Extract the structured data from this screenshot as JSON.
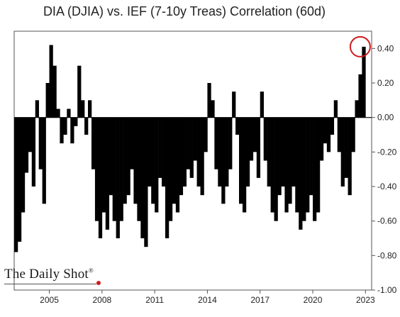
{
  "header": {
    "title": "DIA (DJIA) vs. IEF (7-10y Treas) Correlation (60d)"
  },
  "branding": {
    "watermark": "The Daily Shot",
    "registered_mark": "®"
  },
  "chart_data": {
    "type": "bar",
    "title": "DIA (DJIA) vs. IEF (7-10y Treas) Correlation (60d)",
    "xlabel": "",
    "ylabel": "",
    "ylim": [
      -1.0,
      0.5
    ],
    "y_ticks": [
      0.4,
      0.2,
      0.0,
      -0.2,
      -0.4,
      -0.6,
      -0.8,
      -1.0
    ],
    "y_tick_labels": [
      "0.40",
      "0.20",
      "0.00",
      "-0.20",
      "-0.40",
      "-0.60",
      "-0.80",
      "-1.00"
    ],
    "x_ticks": [
      2005,
      2008,
      2011,
      2014,
      2017,
      2020,
      2023
    ],
    "x_tick_labels": [
      "2005",
      "2008",
      "2011",
      "2014",
      "2017",
      "2020",
      "2023"
    ],
    "x_range": [
      2003.0,
      2023.35
    ],
    "y_axis_position": "right",
    "grid": false,
    "bar_color": "#000000",
    "highlight_color": "#d01c1f",
    "highlight_annotation": {
      "x": 2022.7,
      "y": 0.41
    },
    "x": [
      2003.0,
      2003.2,
      2003.4,
      2003.6,
      2003.8,
      2004.0,
      2004.2,
      2004.4,
      2004.6,
      2004.8,
      2005.0,
      2005.2,
      2005.4,
      2005.6,
      2005.8,
      2006.0,
      2006.2,
      2006.4,
      2006.6,
      2006.8,
      2007.0,
      2007.2,
      2007.4,
      2007.6,
      2007.8,
      2008.0,
      2008.2,
      2008.4,
      2008.6,
      2008.8,
      2009.0,
      2009.2,
      2009.4,
      2009.6,
      2009.8,
      2010.0,
      2010.2,
      2010.4,
      2010.6,
      2010.8,
      2011.0,
      2011.2,
      2011.4,
      2011.6,
      2011.8,
      2012.0,
      2012.2,
      2012.4,
      2012.6,
      2012.8,
      2013.0,
      2013.2,
      2013.4,
      2013.6,
      2013.8,
      2014.0,
      2014.2,
      2014.4,
      2014.6,
      2014.8,
      2015.0,
      2015.2,
      2015.4,
      2015.6,
      2015.8,
      2016.0,
      2016.2,
      2016.4,
      2016.6,
      2016.8,
      2017.0,
      2017.2,
      2017.4,
      2017.6,
      2017.8,
      2018.0,
      2018.2,
      2018.4,
      2018.6,
      2018.8,
      2019.0,
      2019.2,
      2019.4,
      2019.6,
      2019.8,
      2020.0,
      2020.2,
      2020.4,
      2020.6,
      2020.8,
      2021.0,
      2021.2,
      2021.4,
      2021.6,
      2021.8,
      2022.0,
      2022.2,
      2022.4,
      2022.6,
      2022.8
    ],
    "values": [
      -0.78,
      -0.72,
      -0.55,
      -0.32,
      -0.2,
      -0.4,
      0.1,
      -0.3,
      -0.5,
      0.2,
      0.42,
      0.3,
      0.05,
      -0.15,
      -0.1,
      0.05,
      -0.15,
      -0.05,
      0.3,
      0.1,
      -0.1,
      0.1,
      -0.3,
      -0.6,
      -0.7,
      -0.55,
      -0.65,
      -0.45,
      -0.6,
      -0.7,
      -0.6,
      -0.5,
      -0.45,
      -0.3,
      -0.5,
      -0.6,
      -0.7,
      -0.75,
      -0.4,
      -0.5,
      -0.55,
      -0.35,
      -0.4,
      -0.7,
      -0.6,
      -0.5,
      -0.55,
      -0.45,
      -0.4,
      -0.3,
      -0.35,
      -0.25,
      -0.4,
      -0.45,
      -0.2,
      0.2,
      0.1,
      -0.3,
      -0.4,
      -0.5,
      -0.4,
      -0.3,
      0.15,
      -0.1,
      -0.5,
      -0.55,
      -0.4,
      -0.25,
      -0.2,
      -0.35,
      0.15,
      -0.25,
      -0.4,
      -0.55,
      -0.6,
      -0.45,
      -0.4,
      -0.55,
      -0.5,
      -0.4,
      -0.55,
      -0.65,
      -0.6,
      -0.55,
      -0.45,
      -0.6,
      -0.55,
      -0.25,
      -0.15,
      -0.2,
      -0.1,
      0.1,
      -0.2,
      -0.4,
      -0.35,
      -0.45,
      -0.2,
      0.1,
      0.25,
      0.41
    ]
  }
}
